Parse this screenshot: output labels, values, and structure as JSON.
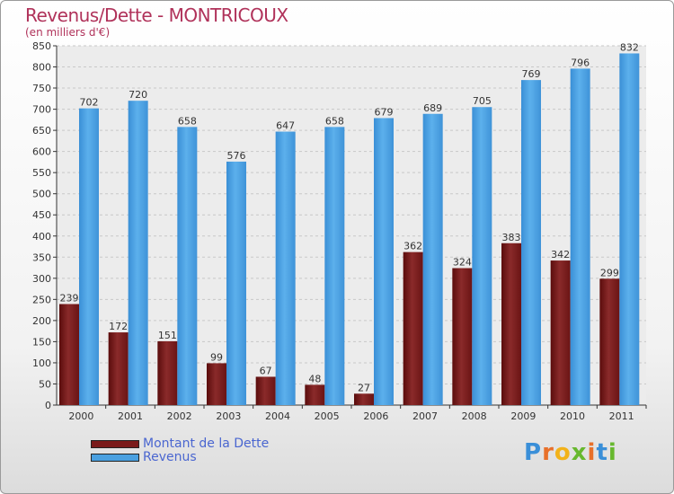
{
  "header": {
    "title": "Revenus/Dette - MONTRICOUX",
    "subtitle": "(en milliers d'€)"
  },
  "legend": {
    "debt_label": "Montant de la Dette",
    "revenue_label": "Revenus"
  },
  "logo": {
    "text": "Proxiti"
  },
  "colors": {
    "debt": "#7a1a1a",
    "revenue": "#4aa0e0",
    "grid": "#c8c8c8"
  },
  "chart_data": {
    "type": "bar",
    "title": "Revenus/Dette - MONTRICOUX",
    "ylabel": "(en milliers d'€)",
    "xlabel": "",
    "ylim": [
      0,
      850
    ],
    "ytick_step": 50,
    "categories": [
      "2000",
      "2001",
      "2002",
      "2003",
      "2004",
      "2005",
      "2006",
      "2007",
      "2008",
      "2009",
      "2010",
      "2011"
    ],
    "series": [
      {
        "name": "Montant de la Dette",
        "values": [
          239,
          172,
          151,
          99,
          67,
          48,
          27,
          362,
          324,
          383,
          342,
          299
        ]
      },
      {
        "name": "Revenus",
        "values": [
          702,
          720,
          658,
          576,
          647,
          658,
          679,
          689,
          705,
          769,
          796,
          832
        ]
      }
    ],
    "legend_position": "bottom-left",
    "grid": true
  }
}
